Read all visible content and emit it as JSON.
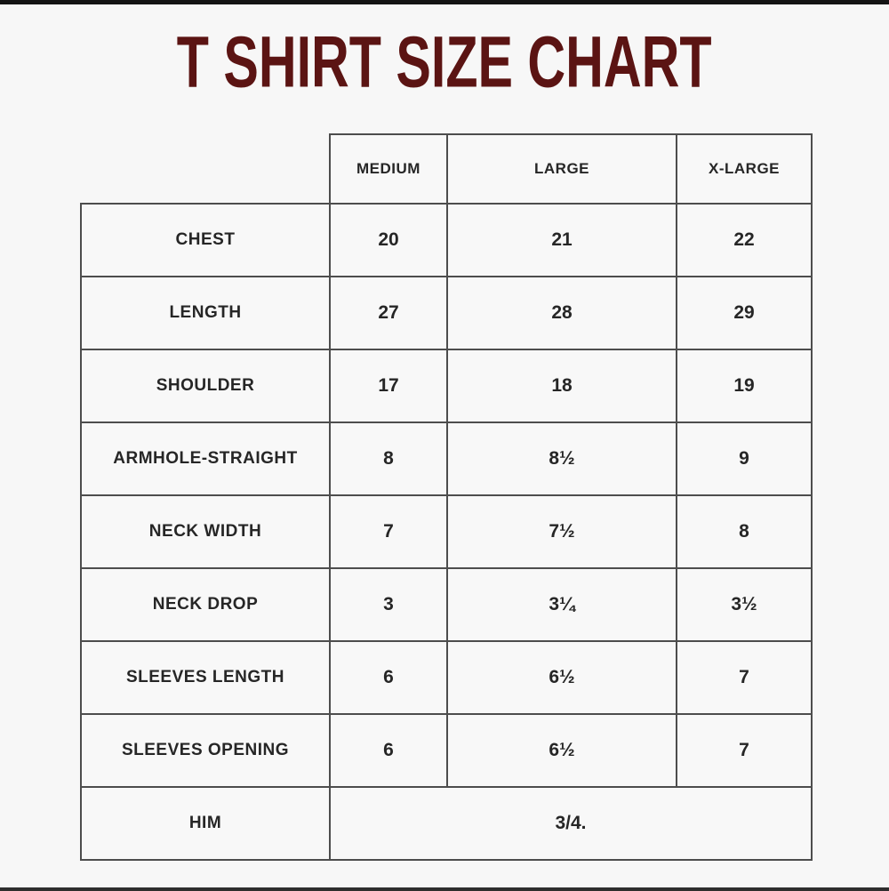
{
  "page": {
    "background": "#f7f7f7",
    "top_bar_color": "#141414",
    "bottom_bar_color": "#2e2e2e"
  },
  "title": {
    "text": "T SHIRT SIZE CHART",
    "color": "#5b1413"
  },
  "table": {
    "border_color": "#4d4d4d",
    "columns": [
      "",
      "MEDIUM",
      "LARGE",
      "X-LARGE"
    ],
    "rows": [
      {
        "label": "CHEST",
        "values": [
          "20",
          "21",
          "22"
        ]
      },
      {
        "label": "LENGTH",
        "values": [
          "27",
          "28",
          "29"
        ]
      },
      {
        "label": "SHOULDER",
        "values": [
          "17",
          "18",
          "19"
        ]
      },
      {
        "label": "ARMHOLE-STRAIGHT",
        "values": [
          "8",
          "8½",
          "9"
        ]
      },
      {
        "label": "NECK WIDTH",
        "values": [
          "7",
          "7½",
          "8"
        ]
      },
      {
        "label": "NECK DROP",
        "values": [
          "3",
          "3¼",
          "3½"
        ]
      },
      {
        "label": "SLEEVES LENGTH",
        "values": [
          "6",
          "6½",
          "7"
        ]
      },
      {
        "label": "SLEEVES OPENING",
        "values": [
          "6",
          "6½",
          "7"
        ]
      },
      {
        "label": "HIM",
        "values": [
          "3/4."
        ],
        "colspan": 3
      }
    ]
  }
}
